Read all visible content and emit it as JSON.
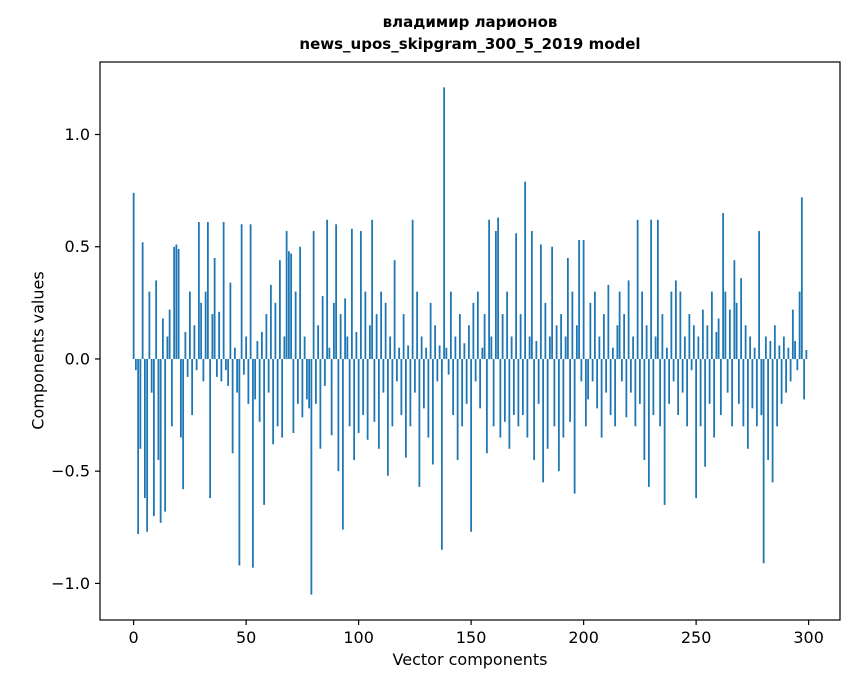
{
  "chart_data": {
    "type": "bar",
    "title_line1": "владимир ларионов",
    "title_line2": "news_upos_skipgram_300_5_2019 model",
    "xlabel": "Vector components",
    "ylabel": "Components values",
    "xlim": [
      -14.95,
      313.95
    ],
    "ylim": [
      -1.163,
      1.323
    ],
    "xticks": [
      0,
      50,
      100,
      150,
      200,
      250,
      300
    ],
    "yticks": [
      -1.0,
      -0.5,
      0.0,
      0.5,
      1.0
    ],
    "bar_color": "#1f77b4",
    "axis_color": "#000000",
    "legend": "none",
    "grid": false,
    "values": [
      0.74,
      -0.05,
      -0.78,
      -0.4,
      0.52,
      -0.62,
      -0.77,
      0.3,
      -0.15,
      -0.7,
      0.35,
      -0.45,
      -0.73,
      0.18,
      -0.68,
      0.1,
      0.22,
      -0.3,
      0.5,
      0.51,
      0.49,
      -0.35,
      -0.58,
      0.12,
      -0.08,
      0.3,
      -0.25,
      0.15,
      -0.05,
      0.61,
      0.25,
      -0.1,
      0.3,
      0.61,
      -0.62,
      0.2,
      0.45,
      -0.08,
      0.21,
      -0.1,
      0.61,
      -0.05,
      -0.12,
      0.34,
      -0.42,
      0.05,
      -0.15,
      -0.92,
      0.6,
      -0.07,
      0.1,
      -0.2,
      0.6,
      -0.93,
      -0.18,
      0.08,
      -0.28,
      0.12,
      -0.65,
      0.2,
      -0.15,
      0.33,
      -0.38,
      0.25,
      -0.3,
      0.44,
      -0.35,
      0.1,
      0.57,
      0.48,
      0.47,
      -0.33,
      0.3,
      -0.2,
      0.5,
      -0.26,
      0.1,
      -0.18,
      -0.22,
      -1.05,
      0.57,
      -0.2,
      0.15,
      -0.4,
      0.28,
      -0.12,
      0.62,
      0.05,
      -0.34,
      0.25,
      0.6,
      -0.5,
      0.2,
      -0.76,
      0.27,
      0.1,
      -0.3,
      0.58,
      -0.45,
      0.12,
      -0.33,
      0.57,
      -0.25,
      0.3,
      -0.36,
      0.15,
      0.62,
      -0.28,
      0.2,
      -0.4,
      0.3,
      -0.15,
      0.25,
      -0.52,
      0.1,
      -0.3,
      0.44,
      -0.1,
      0.05,
      -0.25,
      0.2,
      -0.44,
      0.06,
      -0.3,
      0.62,
      -0.15,
      0.3,
      -0.57,
      0.1,
      -0.22,
      0.05,
      -0.35,
      0.25,
      -0.47,
      0.15,
      -0.1,
      0.06,
      -0.85,
      1.21,
      0.05,
      -0.07,
      0.3,
      -0.25,
      0.1,
      -0.45,
      0.2,
      -0.3,
      0.07,
      -0.2,
      0.15,
      -0.77,
      0.25,
      -0.1,
      0.3,
      -0.22,
      0.05,
      0.2,
      -0.42,
      0.62,
      0.1,
      -0.3,
      0.57,
      0.63,
      -0.35,
      0.2,
      -0.28,
      0.3,
      -0.4,
      0.1,
      -0.25,
      0.56,
      -0.3,
      0.2,
      -0.25,
      0.79,
      -0.35,
      0.1,
      0.57,
      -0.45,
      0.08,
      -0.2,
      0.51,
      -0.55,
      0.25,
      -0.4,
      0.1,
      0.5,
      -0.3,
      0.15,
      -0.5,
      0.2,
      -0.35,
      0.1,
      0.45,
      -0.28,
      0.3,
      -0.6,
      0.15,
      0.53,
      -0.1,
      0.53,
      -0.3,
      -0.18,
      0.25,
      -0.1,
      0.3,
      -0.22,
      0.1,
      -0.35,
      0.2,
      -0.15,
      0.33,
      -0.25,
      0.05,
      -0.3,
      0.15,
      0.3,
      -0.1,
      0.2,
      -0.26,
      0.35,
      -0.15,
      0.1,
      -0.3,
      0.62,
      -0.2,
      0.3,
      -0.45,
      0.15,
      -0.57,
      0.62,
      -0.25,
      0.1,
      0.62,
      -0.3,
      0.2,
      -0.65,
      0.05,
      -0.2,
      0.3,
      -0.1,
      0.35,
      -0.25,
      0.3,
      -0.15,
      0.1,
      -0.3,
      0.2,
      -0.05,
      0.15,
      -0.62,
      0.1,
      -0.3,
      0.22,
      -0.48,
      0.15,
      -0.2,
      0.3,
      -0.35,
      0.12,
      0.18,
      -0.25,
      0.65,
      0.3,
      -0.15,
      0.22,
      -0.3,
      0.44,
      0.25,
      -0.2,
      0.36,
      -0.3,
      0.15,
      -0.4,
      0.1,
      -0.22,
      0.05,
      -0.3,
      0.57,
      -0.25,
      -0.91,
      0.1,
      -0.45,
      0.08,
      -0.55,
      0.15,
      -0.3,
      0.06,
      -0.2,
      0.1,
      -0.15,
      0.05,
      -0.1,
      0.22,
      0.08,
      -0.05,
      0.3,
      0.72,
      -0.18,
      0.04
    ]
  }
}
